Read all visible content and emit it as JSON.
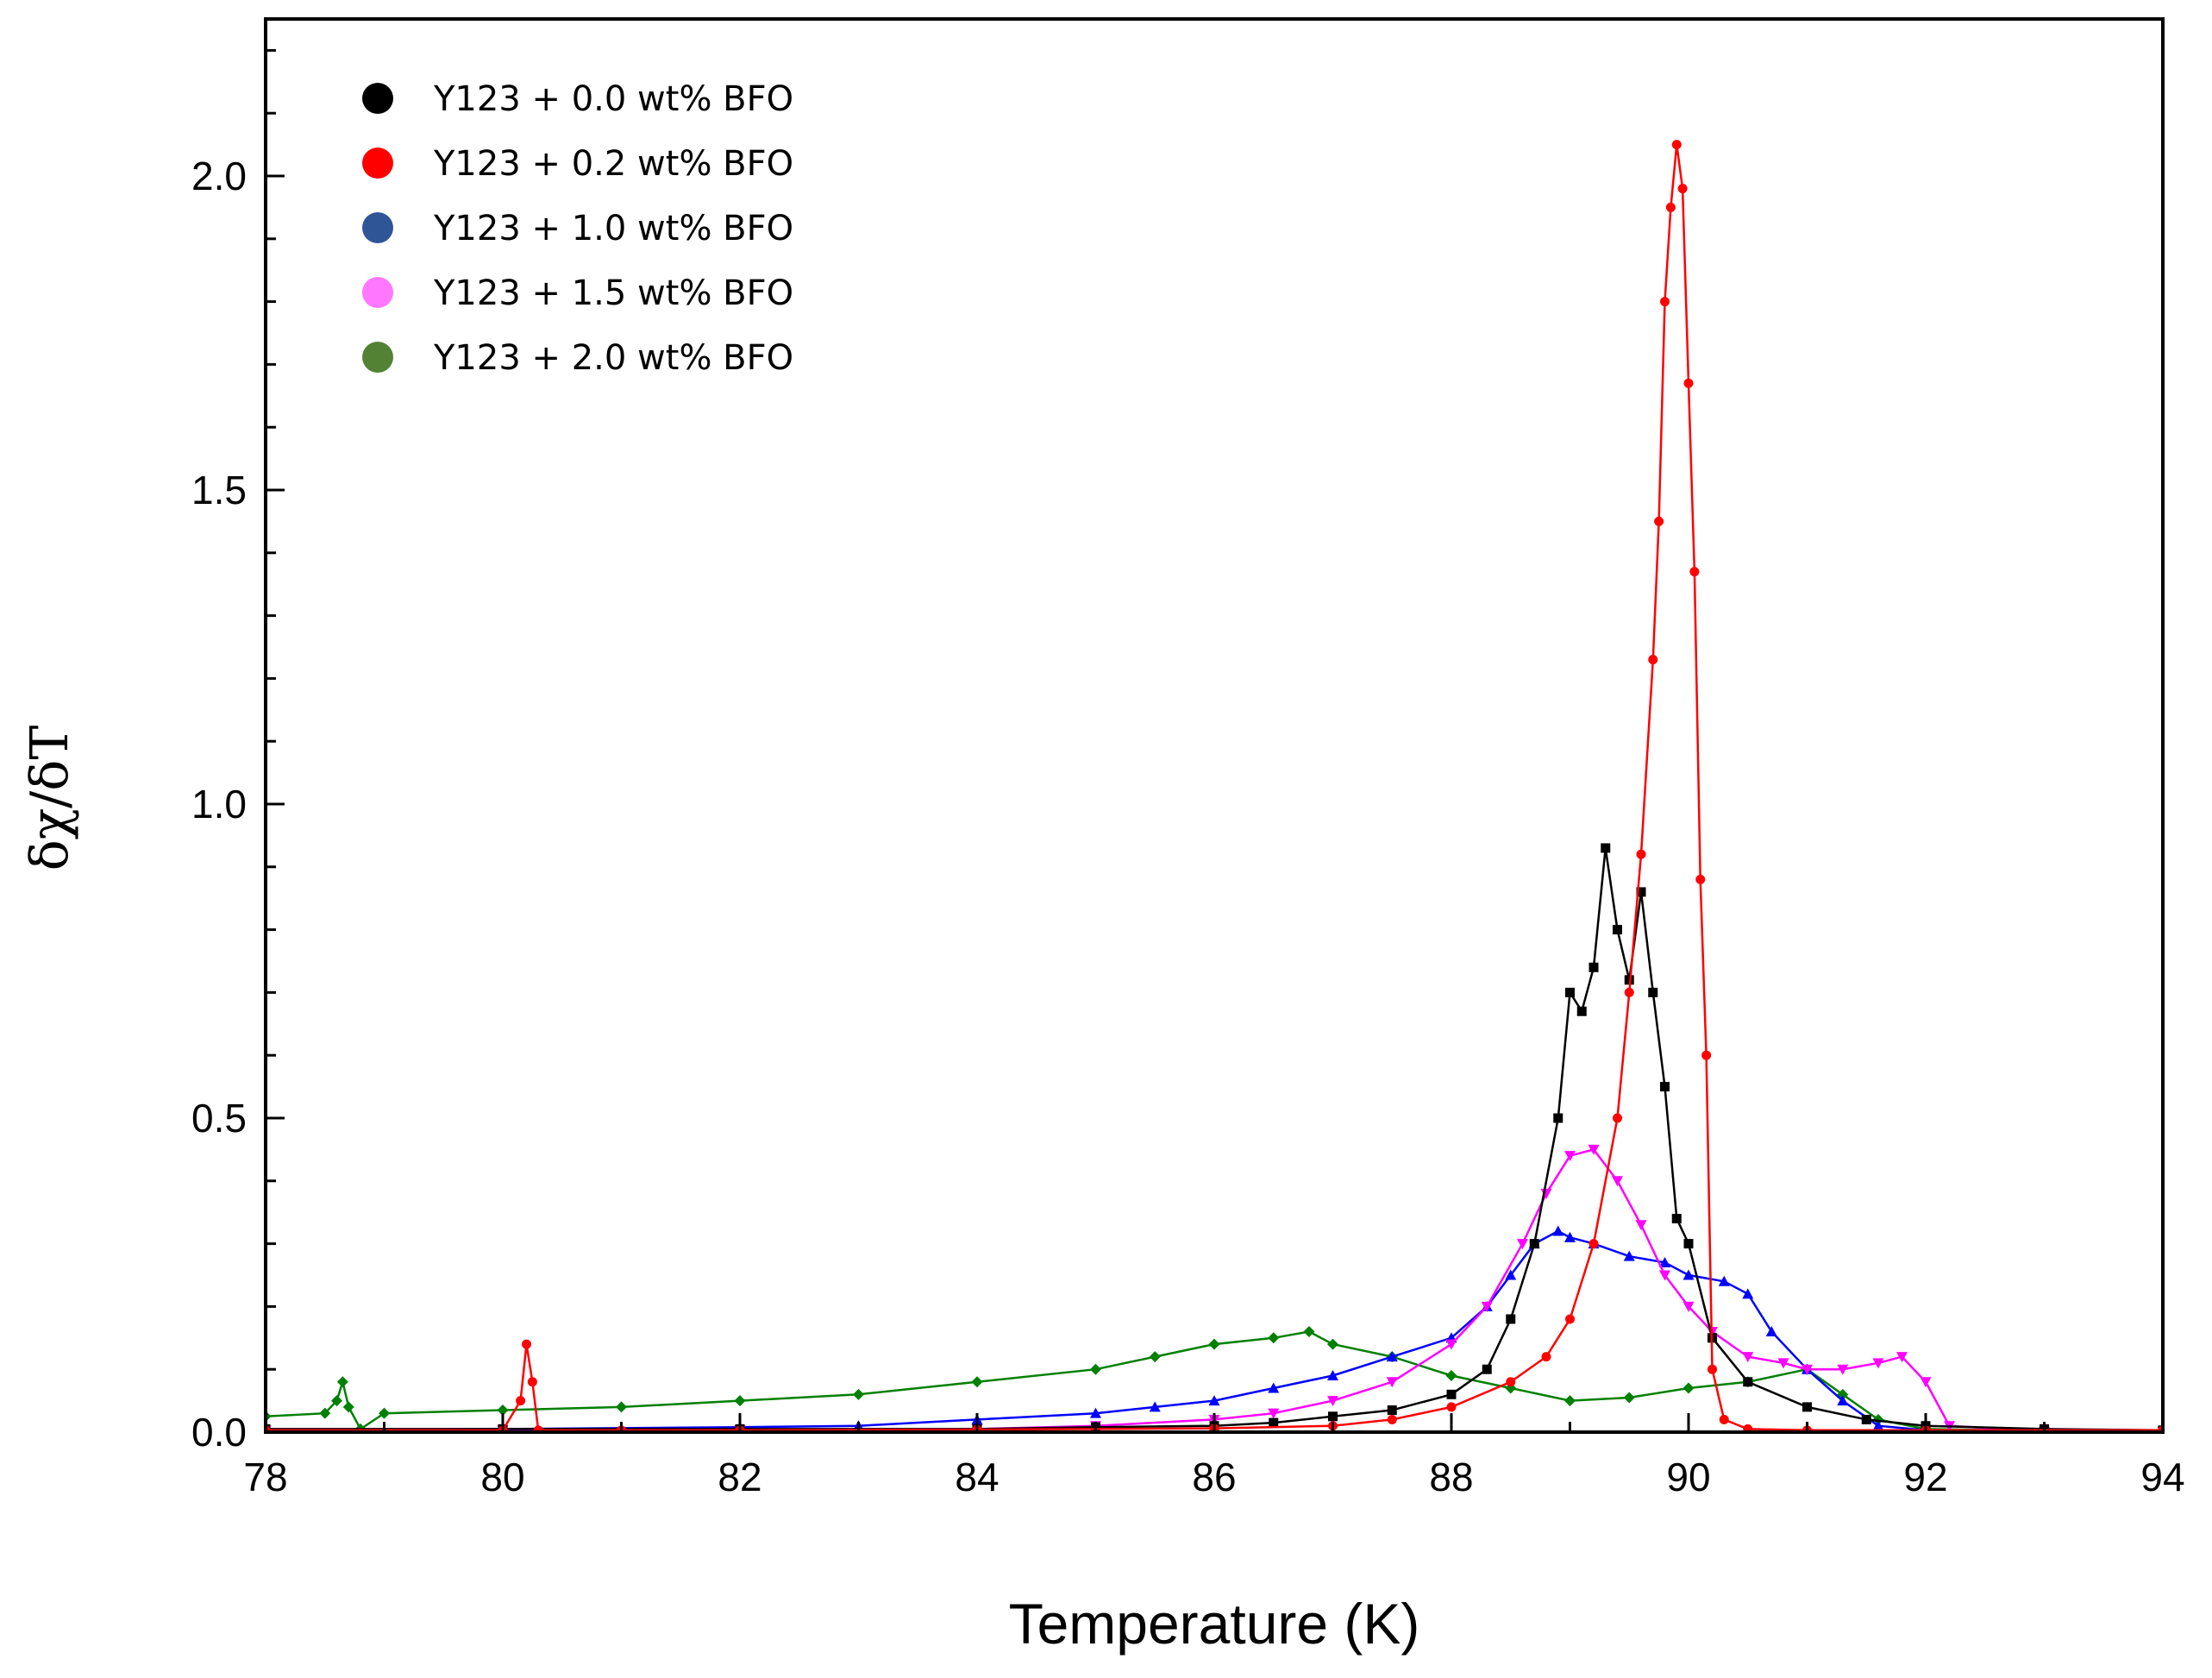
{
  "chart_data": {
    "type": "line",
    "title": "",
    "xlabel": "Temperature (K)",
    "ylabel": "δχ/δT",
    "xlim": [
      78,
      94
    ],
    "ylim": [
      0,
      2.25
    ],
    "xticks": [
      78,
      80,
      82,
      84,
      86,
      88,
      90,
      92,
      94
    ],
    "xtick_labels": [
      "78",
      "80",
      "82",
      "84",
      "86",
      "88",
      "90",
      "92",
      "94"
    ],
    "yticks": [
      0,
      0.5,
      1.0,
      1.5,
      2.0
    ],
    "ytick_labels": [
      "0.0",
      "0.5",
      "1.0",
      "1.5",
      "2.0"
    ],
    "legend_position": "top-left",
    "series": [
      {
        "name": "Y123 + 0.0 wt% BFO",
        "color": "#000000",
        "legend_color": "#000000",
        "marker": "square",
        "x": [
          78,
          80,
          82,
          84,
          85,
          86,
          86.5,
          87,
          87.5,
          88,
          88.3,
          88.5,
          88.7,
          88.9,
          89.0,
          89.1,
          89.2,
          89.3,
          89.4,
          89.5,
          89.6,
          89.7,
          89.8,
          89.9,
          90.0,
          90.2,
          90.5,
          91,
          91.5,
          92,
          93,
          94
        ],
        "y": [
          0.005,
          0.005,
          0.005,
          0.005,
          0.008,
          0.01,
          0.015,
          0.025,
          0.035,
          0.06,
          0.1,
          0.18,
          0.3,
          0.5,
          0.7,
          0.67,
          0.74,
          0.93,
          0.8,
          0.72,
          0.86,
          0.7,
          0.55,
          0.34,
          0.3,
          0.15,
          0.08,
          0.04,
          0.02,
          0.01,
          0.005,
          0.003
        ]
      },
      {
        "name": "Y123 + 0.2 wt% BFO",
        "color": "#ff0000",
        "legend_color": "#ff0000",
        "marker": "circle",
        "x": [
          78,
          80.0,
          80.15,
          80.2,
          80.25,
          80.3,
          81,
          82,
          84,
          86,
          87,
          87.5,
          88,
          88.5,
          88.8,
          89.0,
          89.2,
          89.4,
          89.5,
          89.6,
          89.7,
          89.75,
          89.8,
          89.85,
          89.9,
          89.95,
          90.0,
          90.05,
          90.1,
          90.15,
          90.2,
          90.3,
          90.5,
          91,
          92,
          94
        ],
        "y": [
          0.003,
          0.003,
          0.05,
          0.14,
          0.08,
          0.003,
          0.003,
          0.003,
          0.004,
          0.006,
          0.01,
          0.02,
          0.04,
          0.08,
          0.12,
          0.18,
          0.3,
          0.5,
          0.7,
          0.92,
          1.23,
          1.45,
          1.8,
          1.95,
          2.05,
          1.98,
          1.67,
          1.37,
          0.88,
          0.6,
          0.1,
          0.02,
          0.005,
          0.003,
          0.003,
          0.003
        ]
      },
      {
        "name": "Y123 + 1.0 wt% BFO",
        "color": "#0000ff",
        "legend_color": "#2f5597",
        "marker": "triangle-up",
        "x": [
          78,
          80,
          82,
          83,
          84,
          85,
          85.5,
          86,
          86.5,
          87,
          87.5,
          88,
          88.3,
          88.5,
          88.7,
          88.9,
          89.0,
          89.2,
          89.5,
          89.8,
          90.0,
          90.3,
          90.5,
          90.7,
          91.0,
          91.3,
          91.6,
          92,
          94
        ],
        "y": [
          0.003,
          0.005,
          0.008,
          0.01,
          0.02,
          0.03,
          0.04,
          0.05,
          0.07,
          0.09,
          0.12,
          0.15,
          0.2,
          0.25,
          0.3,
          0.32,
          0.31,
          0.3,
          0.28,
          0.27,
          0.25,
          0.24,
          0.22,
          0.16,
          0.1,
          0.05,
          0.01,
          0.003,
          0.001
        ]
      },
      {
        "name": "Y123 + 1.5 wt% BFO",
        "color": "#ff00ff",
        "legend_color": "#ff77ff",
        "marker": "triangle-down",
        "x": [
          78,
          80,
          82,
          84,
          85,
          86,
          86.5,
          87,
          87.5,
          88,
          88.3,
          88.6,
          88.8,
          89.0,
          89.2,
          89.4,
          89.6,
          89.8,
          90.0,
          90.2,
          90.5,
          90.8,
          91.0,
          91.3,
          91.6,
          91.8,
          92.0,
          92.2,
          93,
          94
        ],
        "y": [
          0.003,
          0.003,
          0.003,
          0.005,
          0.01,
          0.02,
          0.03,
          0.05,
          0.08,
          0.14,
          0.2,
          0.3,
          0.38,
          0.44,
          0.45,
          0.4,
          0.33,
          0.25,
          0.2,
          0.16,
          0.12,
          0.11,
          0.1,
          0.1,
          0.11,
          0.12,
          0.08,
          0.01,
          0.001,
          0.001
        ]
      },
      {
        "name": "Y123 + 2.0 wt% BFO",
        "color": "#008000",
        "legend_color": "#548235",
        "marker": "diamond",
        "x": [
          78,
          78.5,
          78.6,
          78.65,
          78.7,
          78.8,
          79,
          80,
          81,
          82,
          83,
          84,
          85,
          85.5,
          86,
          86.5,
          86.8,
          87,
          87.5,
          88,
          88.5,
          89,
          89.5,
          90,
          90.5,
          91,
          91.3,
          91.6,
          92,
          93,
          94
        ],
        "y": [
          0.025,
          0.03,
          0.05,
          0.08,
          0.04,
          0.005,
          0.03,
          0.035,
          0.04,
          0.05,
          0.06,
          0.08,
          0.1,
          0.12,
          0.14,
          0.15,
          0.16,
          0.14,
          0.12,
          0.09,
          0.07,
          0.05,
          0.055,
          0.07,
          0.08,
          0.1,
          0.06,
          0.02,
          0.005,
          0.002,
          0.001
        ]
      }
    ]
  }
}
